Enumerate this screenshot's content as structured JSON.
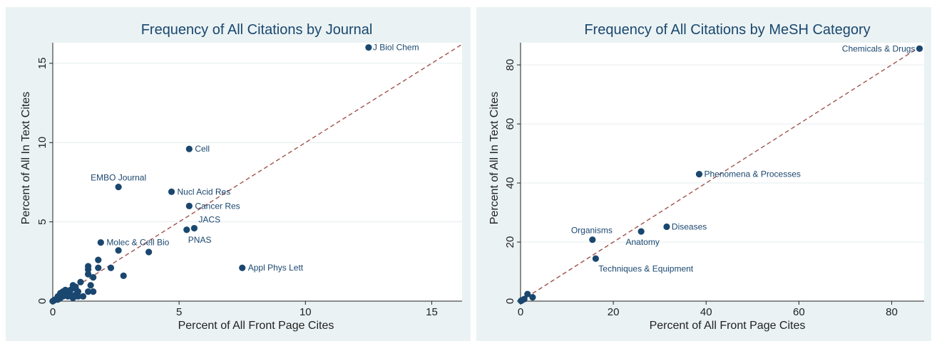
{
  "colors": {
    "panel_bg": "#eaf2f3",
    "marker": "#1a476f",
    "fit_line": "#a0524d",
    "title": "#1a476f"
  },
  "chart_data": [
    {
      "type": "scatter",
      "title": "Frequency of All Citations by Journal",
      "xlabel": "Percent of All Front Page Cites",
      "ylabel": "Percent of All In Text Cites",
      "xlim": [
        0,
        16.2
      ],
      "ylim": [
        0,
        16.3
      ],
      "xticks": [
        0,
        5,
        10,
        15
      ],
      "yticks": [
        0,
        5,
        10,
        15
      ],
      "grid": true,
      "fit_line": {
        "style": "dashed",
        "from": [
          0,
          0
        ],
        "to": [
          16.2,
          16.2
        ]
      },
      "points": [
        {
          "x": 12.5,
          "y": 16.0,
          "label": "J Biol Chem"
        },
        {
          "x": 5.4,
          "y": 9.6,
          "label": "Cell"
        },
        {
          "x": 2.6,
          "y": 7.2,
          "label": "EMBO Journal"
        },
        {
          "x": 4.7,
          "y": 6.9,
          "label": "Nucl Acid Res"
        },
        {
          "x": 5.4,
          "y": 6.0,
          "label": "Cancer Res"
        },
        {
          "x": 5.6,
          "y": 4.6,
          "label": "JACS"
        },
        {
          "x": 5.3,
          "y": 4.5,
          "label": "PNAS"
        },
        {
          "x": 1.9,
          "y": 3.7,
          "label": "Molec & Cell Bio"
        },
        {
          "x": 7.5,
          "y": 2.1,
          "label": "Appl Phys Lett"
        },
        {
          "x": 3.8,
          "y": 3.1,
          "label": ""
        },
        {
          "x": 2.6,
          "y": 3.2,
          "label": ""
        },
        {
          "x": 1.8,
          "y": 2.6,
          "label": ""
        },
        {
          "x": 2.3,
          "y": 2.1,
          "label": ""
        },
        {
          "x": 1.8,
          "y": 2.1,
          "label": ""
        },
        {
          "x": 2.8,
          "y": 1.6,
          "label": ""
        },
        {
          "x": 1.4,
          "y": 2.2,
          "label": ""
        },
        {
          "x": 1.4,
          "y": 2.0,
          "label": ""
        },
        {
          "x": 1.4,
          "y": 1.7,
          "label": ""
        },
        {
          "x": 1.6,
          "y": 1.5,
          "label": ""
        },
        {
          "x": 1.1,
          "y": 1.2,
          "label": ""
        },
        {
          "x": 1.5,
          "y": 1.0,
          "label": ""
        },
        {
          "x": 1.6,
          "y": 0.6,
          "label": ""
        },
        {
          "x": 1.4,
          "y": 0.6,
          "label": ""
        },
        {
          "x": 1.2,
          "y": 0.3,
          "label": ""
        },
        {
          "x": 0.9,
          "y": 0.9,
          "label": ""
        },
        {
          "x": 0.8,
          "y": 1.0,
          "label": ""
        },
        {
          "x": 1.0,
          "y": 0.6,
          "label": ""
        },
        {
          "x": 0.9,
          "y": 0.4,
          "label": ""
        },
        {
          "x": 0.7,
          "y": 0.7,
          "label": ""
        },
        {
          "x": 0.7,
          "y": 0.4,
          "label": ""
        },
        {
          "x": 0.8,
          "y": 0.2,
          "label": ""
        },
        {
          "x": 0.6,
          "y": 0.6,
          "label": ""
        },
        {
          "x": 0.6,
          "y": 0.3,
          "label": ""
        },
        {
          "x": 0.5,
          "y": 0.7,
          "label": ""
        },
        {
          "x": 0.5,
          "y": 0.4,
          "label": ""
        },
        {
          "x": 0.4,
          "y": 0.6,
          "label": ""
        },
        {
          "x": 0.4,
          "y": 0.3,
          "label": ""
        },
        {
          "x": 0.3,
          "y": 0.2,
          "label": ""
        },
        {
          "x": 0.3,
          "y": 0.5,
          "label": ""
        },
        {
          "x": 0.2,
          "y": 0.1,
          "label": ""
        },
        {
          "x": 0.2,
          "y": 0.3,
          "label": ""
        },
        {
          "x": 0.1,
          "y": 0.1,
          "label": ""
        },
        {
          "x": 0.05,
          "y": 0.05,
          "label": ""
        },
        {
          "x": 0.0,
          "y": 0.0,
          "label": ""
        },
        {
          "x": 1.0,
          "y": 0.3,
          "label": ""
        },
        {
          "x": 0.9,
          "y": 0.8,
          "label": ""
        }
      ]
    },
    {
      "type": "scatter",
      "title": "Frequency of All Citations by MeSH Category",
      "xlabel": "Percent of All Front Page Cites",
      "ylabel": "Percent of All In Text Cites",
      "xlim": [
        0,
        87
      ],
      "ylim": [
        0,
        87.5
      ],
      "xticks": [
        0,
        20,
        40,
        60,
        80
      ],
      "yticks": [
        0,
        20,
        40,
        60,
        80
      ],
      "grid": true,
      "fit_line": {
        "style": "dashed",
        "from": [
          0,
          0
        ],
        "to": [
          86,
          86
        ]
      },
      "points": [
        {
          "x": 86.0,
          "y": 85.5,
          "label": "Chemicals & Drugs"
        },
        {
          "x": 38.5,
          "y": 43.0,
          "label": "Phenomena & Processes"
        },
        {
          "x": 31.5,
          "y": 25.2,
          "label": "Diseases"
        },
        {
          "x": 15.5,
          "y": 20.8,
          "label": "Organisms"
        },
        {
          "x": 26.0,
          "y": 23.6,
          "label": "Anatomy"
        },
        {
          "x": 16.2,
          "y": 14.4,
          "label": "Techniques & Equipment"
        },
        {
          "x": 1.5,
          "y": 2.4,
          "label": ""
        },
        {
          "x": 2.6,
          "y": 1.3,
          "label": ""
        },
        {
          "x": 0.8,
          "y": 0.7,
          "label": ""
        },
        {
          "x": 0.3,
          "y": 0.3,
          "label": ""
        },
        {
          "x": 0.1,
          "y": 0.1,
          "label": ""
        }
      ]
    }
  ]
}
